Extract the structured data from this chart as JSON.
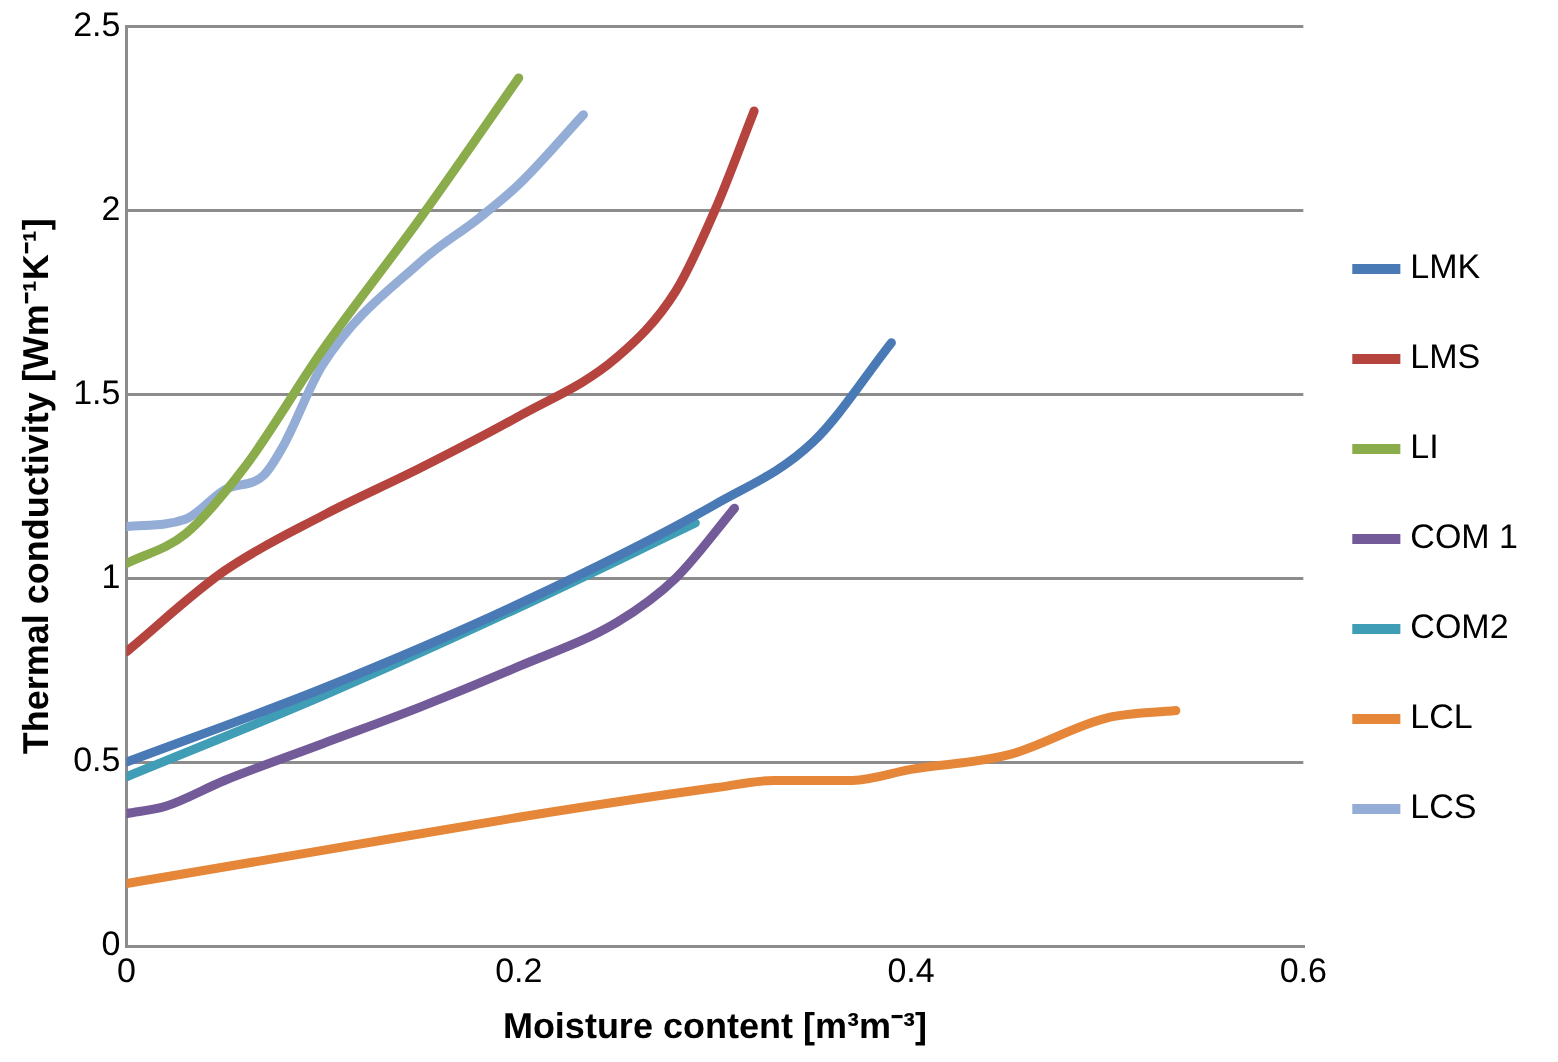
{
  "chart_data": {
    "type": "line",
    "xlabel": "Moisture content [m³m⁻³]",
    "ylabel": "Thermal conductivity [Wm⁻¹K⁻¹]",
    "xlim": [
      0,
      0.6
    ],
    "xticks": [
      0,
      0.2,
      0.4,
      0.6
    ],
    "ylim": [
      0,
      2.5
    ],
    "yticks": [
      0,
      0.5,
      1,
      1.5,
      2,
      2.5
    ],
    "grid": "y",
    "legend": "right",
    "marker": "none",
    "line_style": "solid",
    "series": [
      {
        "name": "LMK",
        "color": "#4a7ab5",
        "x": [
          0,
          0.1,
          0.2,
          0.3,
          0.35,
          0.39
        ],
        "values": [
          0.5,
          0.7,
          0.93,
          1.2,
          1.37,
          1.64
        ]
      },
      {
        "name": "LMS",
        "color": "#b5443f",
        "x": [
          0,
          0.05,
          0.1,
          0.15,
          0.2,
          0.25,
          0.28,
          0.3,
          0.32
        ],
        "values": [
          0.8,
          1.02,
          1.17,
          1.3,
          1.44,
          1.6,
          1.78,
          2.0,
          2.27
        ]
      },
      {
        "name": "LI",
        "color": "#8aac4b",
        "x": [
          0,
          0.03,
          0.06,
          0.1,
          0.15,
          0.2
        ],
        "values": [
          1.04,
          1.12,
          1.3,
          1.62,
          1.98,
          2.36
        ]
      },
      {
        "name": "COM 1",
        "color": "#735a99",
        "x": [
          0,
          0.02,
          0.05,
          0.1,
          0.15,
          0.2,
          0.25,
          0.28,
          0.31
        ],
        "values": [
          0.36,
          0.38,
          0.45,
          0.55,
          0.65,
          0.76,
          0.88,
          1.0,
          1.19
        ]
      },
      {
        "name": "COM2",
        "color": "#3f9db5",
        "x": [
          0,
          0.1,
          0.2,
          0.29
        ],
        "values": [
          0.46,
          0.68,
          0.92,
          1.15
        ]
      },
      {
        "name": "LCL",
        "color": "#e58638",
        "x": [
          0,
          0.1,
          0.2,
          0.3,
          0.33,
          0.37,
          0.4,
          0.45,
          0.5,
          0.535
        ],
        "values": [
          0.17,
          0.26,
          0.35,
          0.43,
          0.45,
          0.45,
          0.48,
          0.52,
          0.62,
          0.64
        ]
      },
      {
        "name": "LCS",
        "color": "#93add6",
        "x": [
          0,
          0.03,
          0.05,
          0.07,
          0.08,
          0.1,
          0.15,
          0.18,
          0.2,
          0.233
        ],
        "values": [
          1.14,
          1.16,
          1.24,
          1.28,
          1.36,
          1.58,
          1.86,
          1.98,
          2.07,
          2.26
        ]
      }
    ]
  }
}
